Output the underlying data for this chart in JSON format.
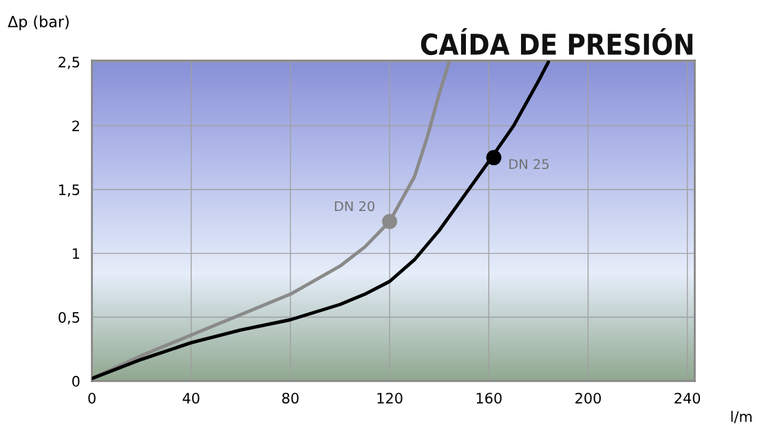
{
  "chart_data": {
    "type": "line",
    "title": "CAÍDA DE PRESIÓN",
    "xlabel": "l/m",
    "ylabel": "Δp (bar)",
    "xlim": [
      0,
      243
    ],
    "ylim": [
      0,
      2.51
    ],
    "xticks": [
      0,
      40,
      80,
      120,
      160,
      200,
      240
    ],
    "yticks": [
      0,
      {
        "value": 0.5,
        "label": "0,5"
      },
      1,
      {
        "value": 1.5,
        "label": "1,5"
      },
      2,
      {
        "value": 2.5,
        "label": "2,5"
      }
    ],
    "grid": true,
    "marker": "none",
    "line_style": "solid",
    "series": [
      {
        "color": "#8a8a8a",
        "x": [
          0,
          20,
          40,
          60,
          80,
          100,
          110,
          120,
          130,
          135,
          140,
          144
        ],
        "values": [
          0.02,
          0.2,
          0.36,
          0.52,
          0.68,
          0.9,
          1.05,
          1.25,
          1.6,
          1.9,
          2.25,
          2.5
        ]
      },
      {
        "color": "#000000",
        "x": [
          0,
          20,
          40,
          60,
          80,
          100,
          110,
          120,
          130,
          140,
          150,
          160,
          170,
          180,
          184
        ],
        "values": [
          0.02,
          0.17,
          0.3,
          0.4,
          0.48,
          0.6,
          0.68,
          0.78,
          0.95,
          1.18,
          1.45,
          1.72,
          2.0,
          2.35,
          2.5
        ]
      },
      {
        "type": "scatter",
        "marker": "circle",
        "color": "#8a8a8a",
        "x": [
          120
        ],
        "values": [
          1.25
        ]
      },
      {
        "type": "scatter",
        "marker": "circle",
        "color": "#000000",
        "x": [
          162
        ],
        "values": [
          1.75
        ]
      }
    ],
    "annotations": [
      {
        "text": "DN 20",
        "x": 120,
        "y": 1.25
      },
      {
        "text": "DN 25",
        "x": 162,
        "y": 1.75
      }
    ]
  }
}
